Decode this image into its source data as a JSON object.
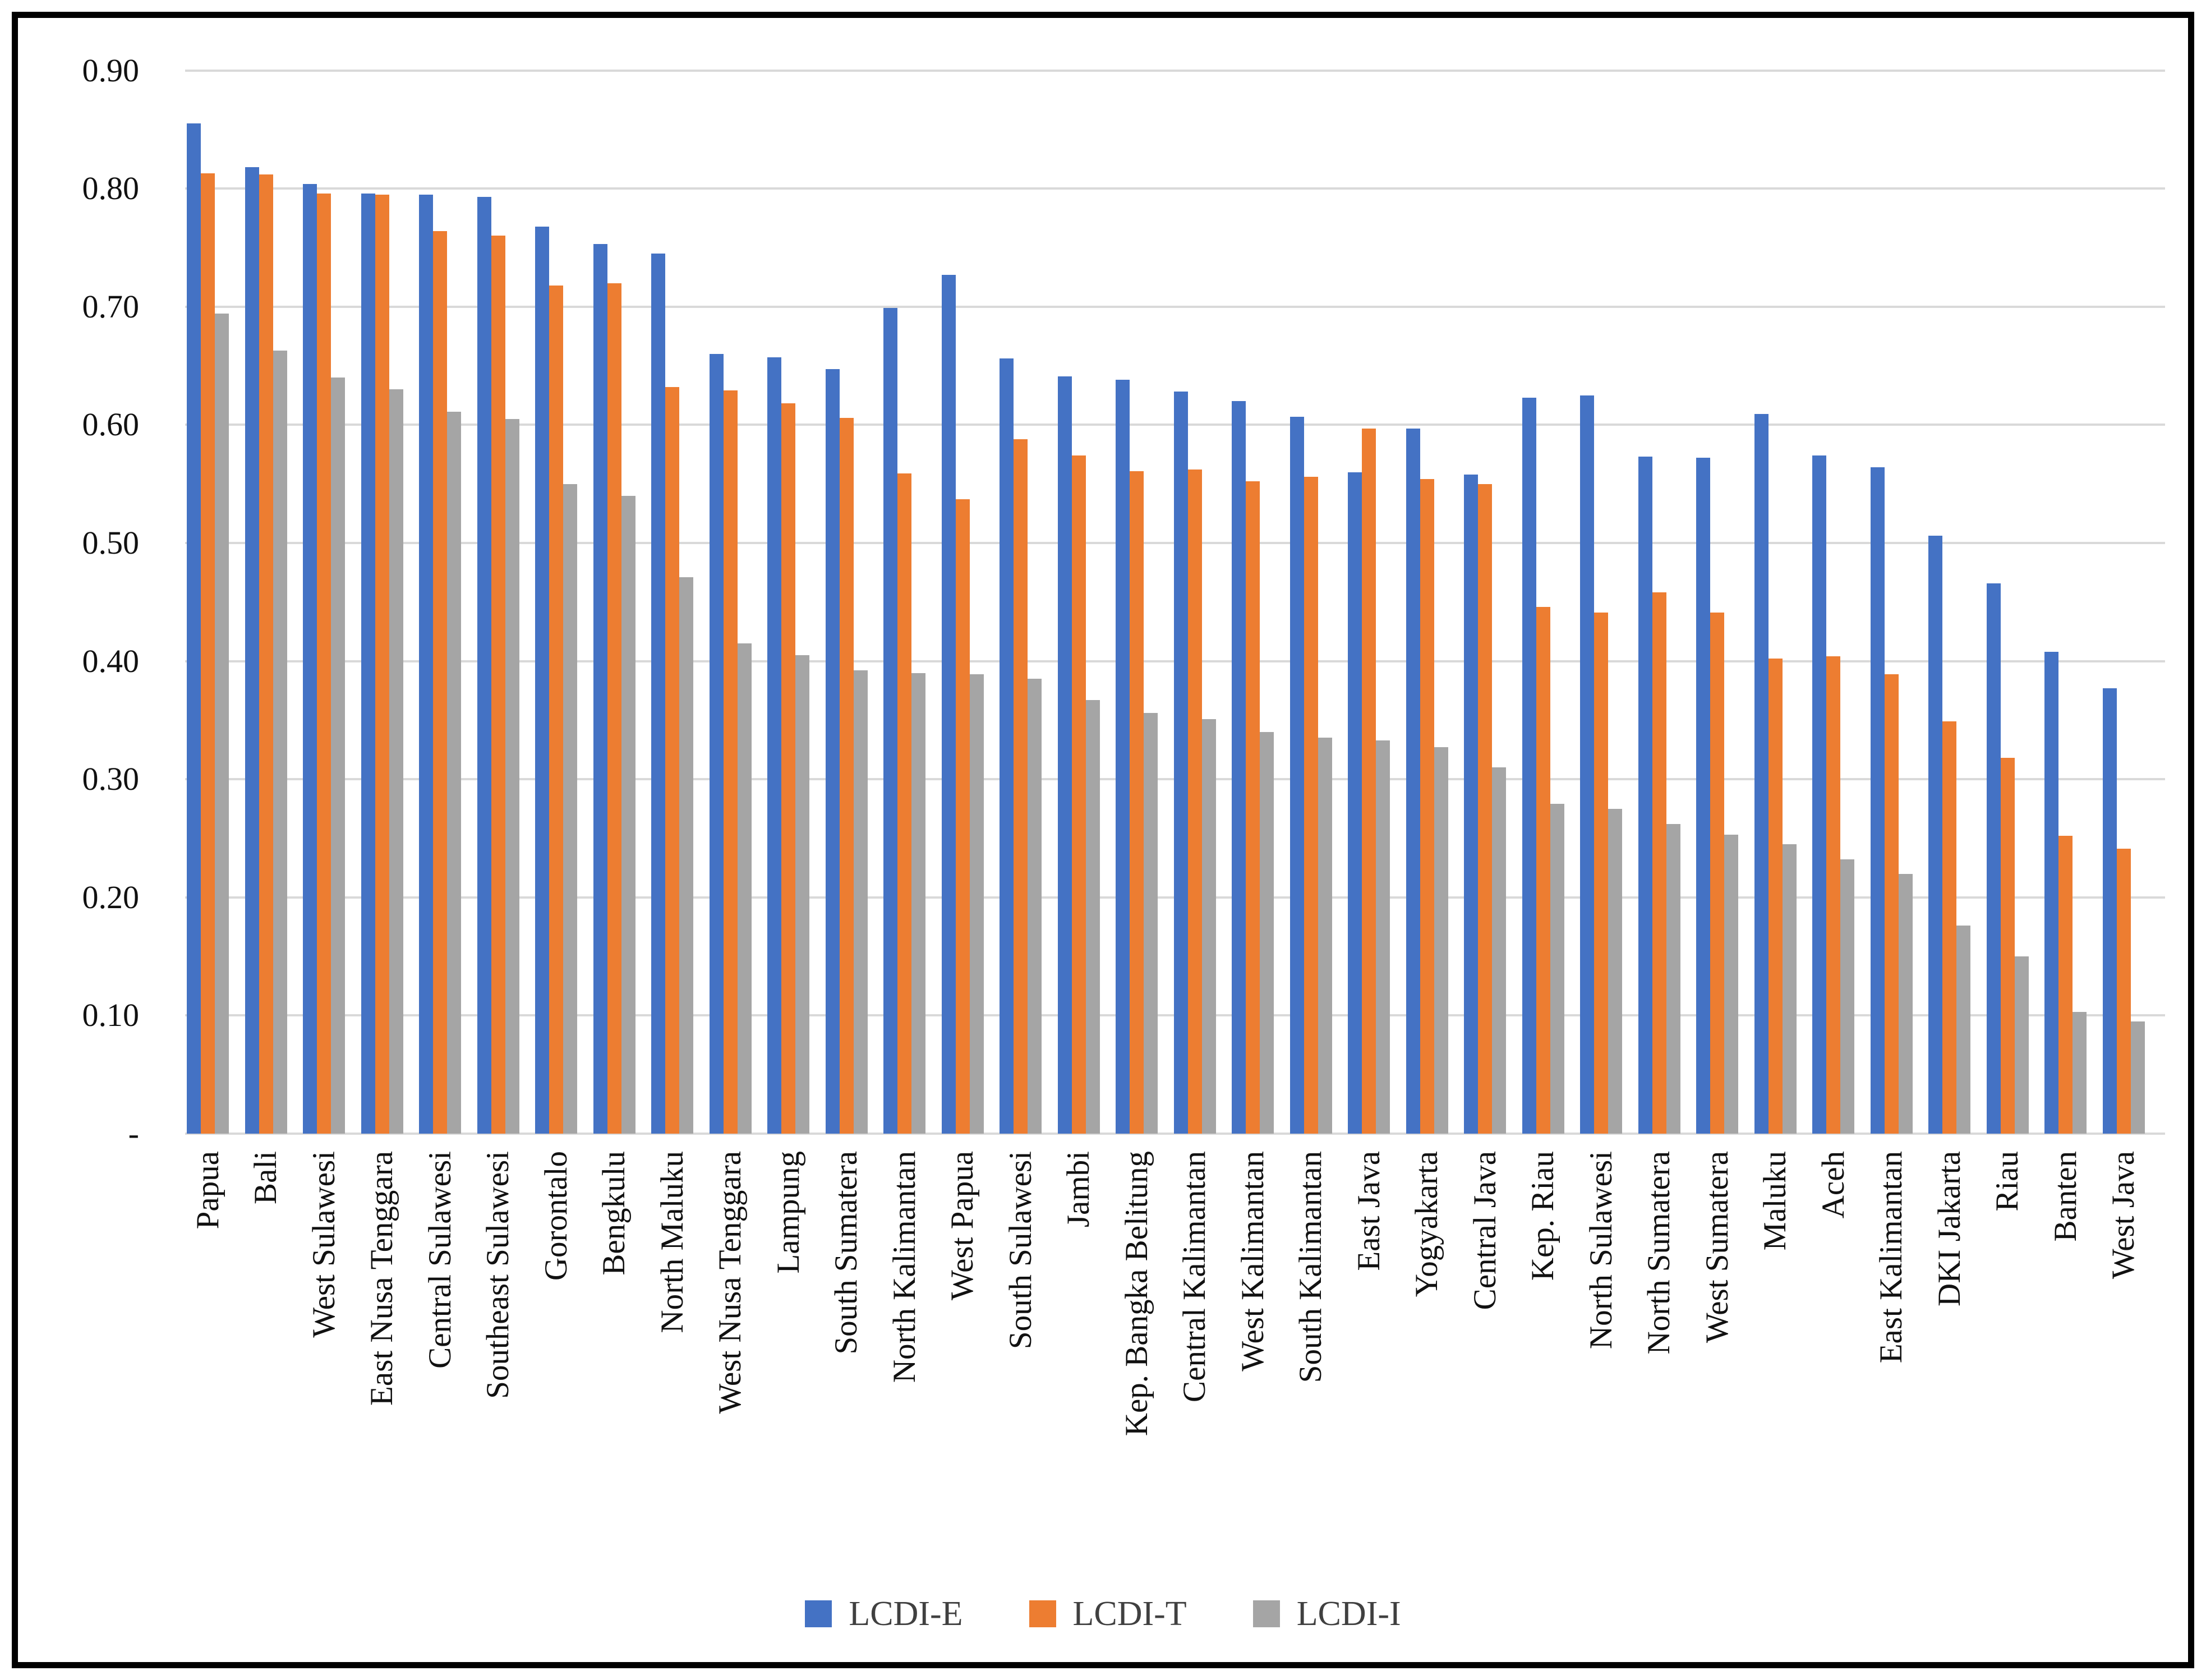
{
  "chart_data": {
    "type": "bar",
    "title": "",
    "xlabel": "",
    "ylabel": "",
    "ylim": [
      0,
      0.9
    ],
    "grid": true,
    "gridline_color": "#D9D9D9",
    "background_color": "#FFFFFF",
    "border_color": "#000000",
    "legend_position": "bottom",
    "y_tick_labels": [
      "0.90",
      "0.80",
      "0.70",
      "0.60",
      "0.50",
      "0.40",
      "0.30",
      "0.20",
      "0.10",
      "-"
    ],
    "categories": [
      "Papua",
      "Bali",
      "West Sulawesi",
      "East Nusa Tenggara",
      "Central Sulawesi",
      "Southeast Sulawesi",
      "Gorontalo",
      "Bengkulu",
      "North Maluku",
      "West Nusa Tenggara",
      "Lampung",
      "South Sumatera",
      "North Kalimantan",
      "West Papua",
      "South Sulawesi",
      "Jambi",
      "Kep. Bangka Belitung",
      "Central Kalimantan",
      "West Kalimantan",
      "South Kalimantan",
      "East Java",
      "Yogyakarta",
      "Central Java",
      "Kep. Riau",
      "North Sulawesi",
      "North Sumatera",
      "West Sumatera",
      "Maluku",
      "Aceh",
      "East Kalimantan",
      "DKI Jakarta",
      "Riau",
      "Banten",
      "West Java"
    ],
    "series": [
      {
        "name": "LCDI-E",
        "color": "#4472C4",
        "values": [
          0.855,
          0.818,
          0.804,
          0.796,
          0.795,
          0.793,
          0.768,
          0.753,
          0.745,
          0.66,
          0.657,
          0.647,
          0.699,
          0.727,
          0.656,
          0.641,
          0.638,
          0.628,
          0.62,
          0.607,
          0.56,
          0.597,
          0.558,
          0.623,
          0.625,
          0.573,
          0.572,
          0.609,
          0.574,
          0.564,
          0.506,
          0.466,
          0.408,
          0.377
        ]
      },
      {
        "name": "LCDI-T",
        "color": "#ED7D31",
        "values": [
          0.813,
          0.812,
          0.796,
          0.795,
          0.764,
          0.76,
          0.718,
          0.72,
          0.632,
          0.629,
          0.618,
          0.606,
          0.559,
          0.537,
          0.588,
          0.574,
          0.561,
          0.562,
          0.552,
          0.556,
          0.597,
          0.554,
          0.55,
          0.446,
          0.441,
          0.458,
          0.441,
          0.402,
          0.404,
          0.389,
          0.349,
          0.318,
          0.252,
          0.241
        ]
      },
      {
        "name": "LCDI-I",
        "color": "#A5A5A5",
        "values": [
          0.694,
          0.663,
          0.64,
          0.63,
          0.611,
          0.605,
          0.55,
          0.54,
          0.471,
          0.415,
          0.405,
          0.392,
          0.39,
          0.389,
          0.385,
          0.367,
          0.356,
          0.351,
          0.34,
          0.335,
          0.333,
          0.327,
          0.31,
          0.279,
          0.275,
          0.262,
          0.253,
          0.245,
          0.232,
          0.22,
          0.176,
          0.15,
          0.103,
          0.095
        ]
      }
    ]
  }
}
